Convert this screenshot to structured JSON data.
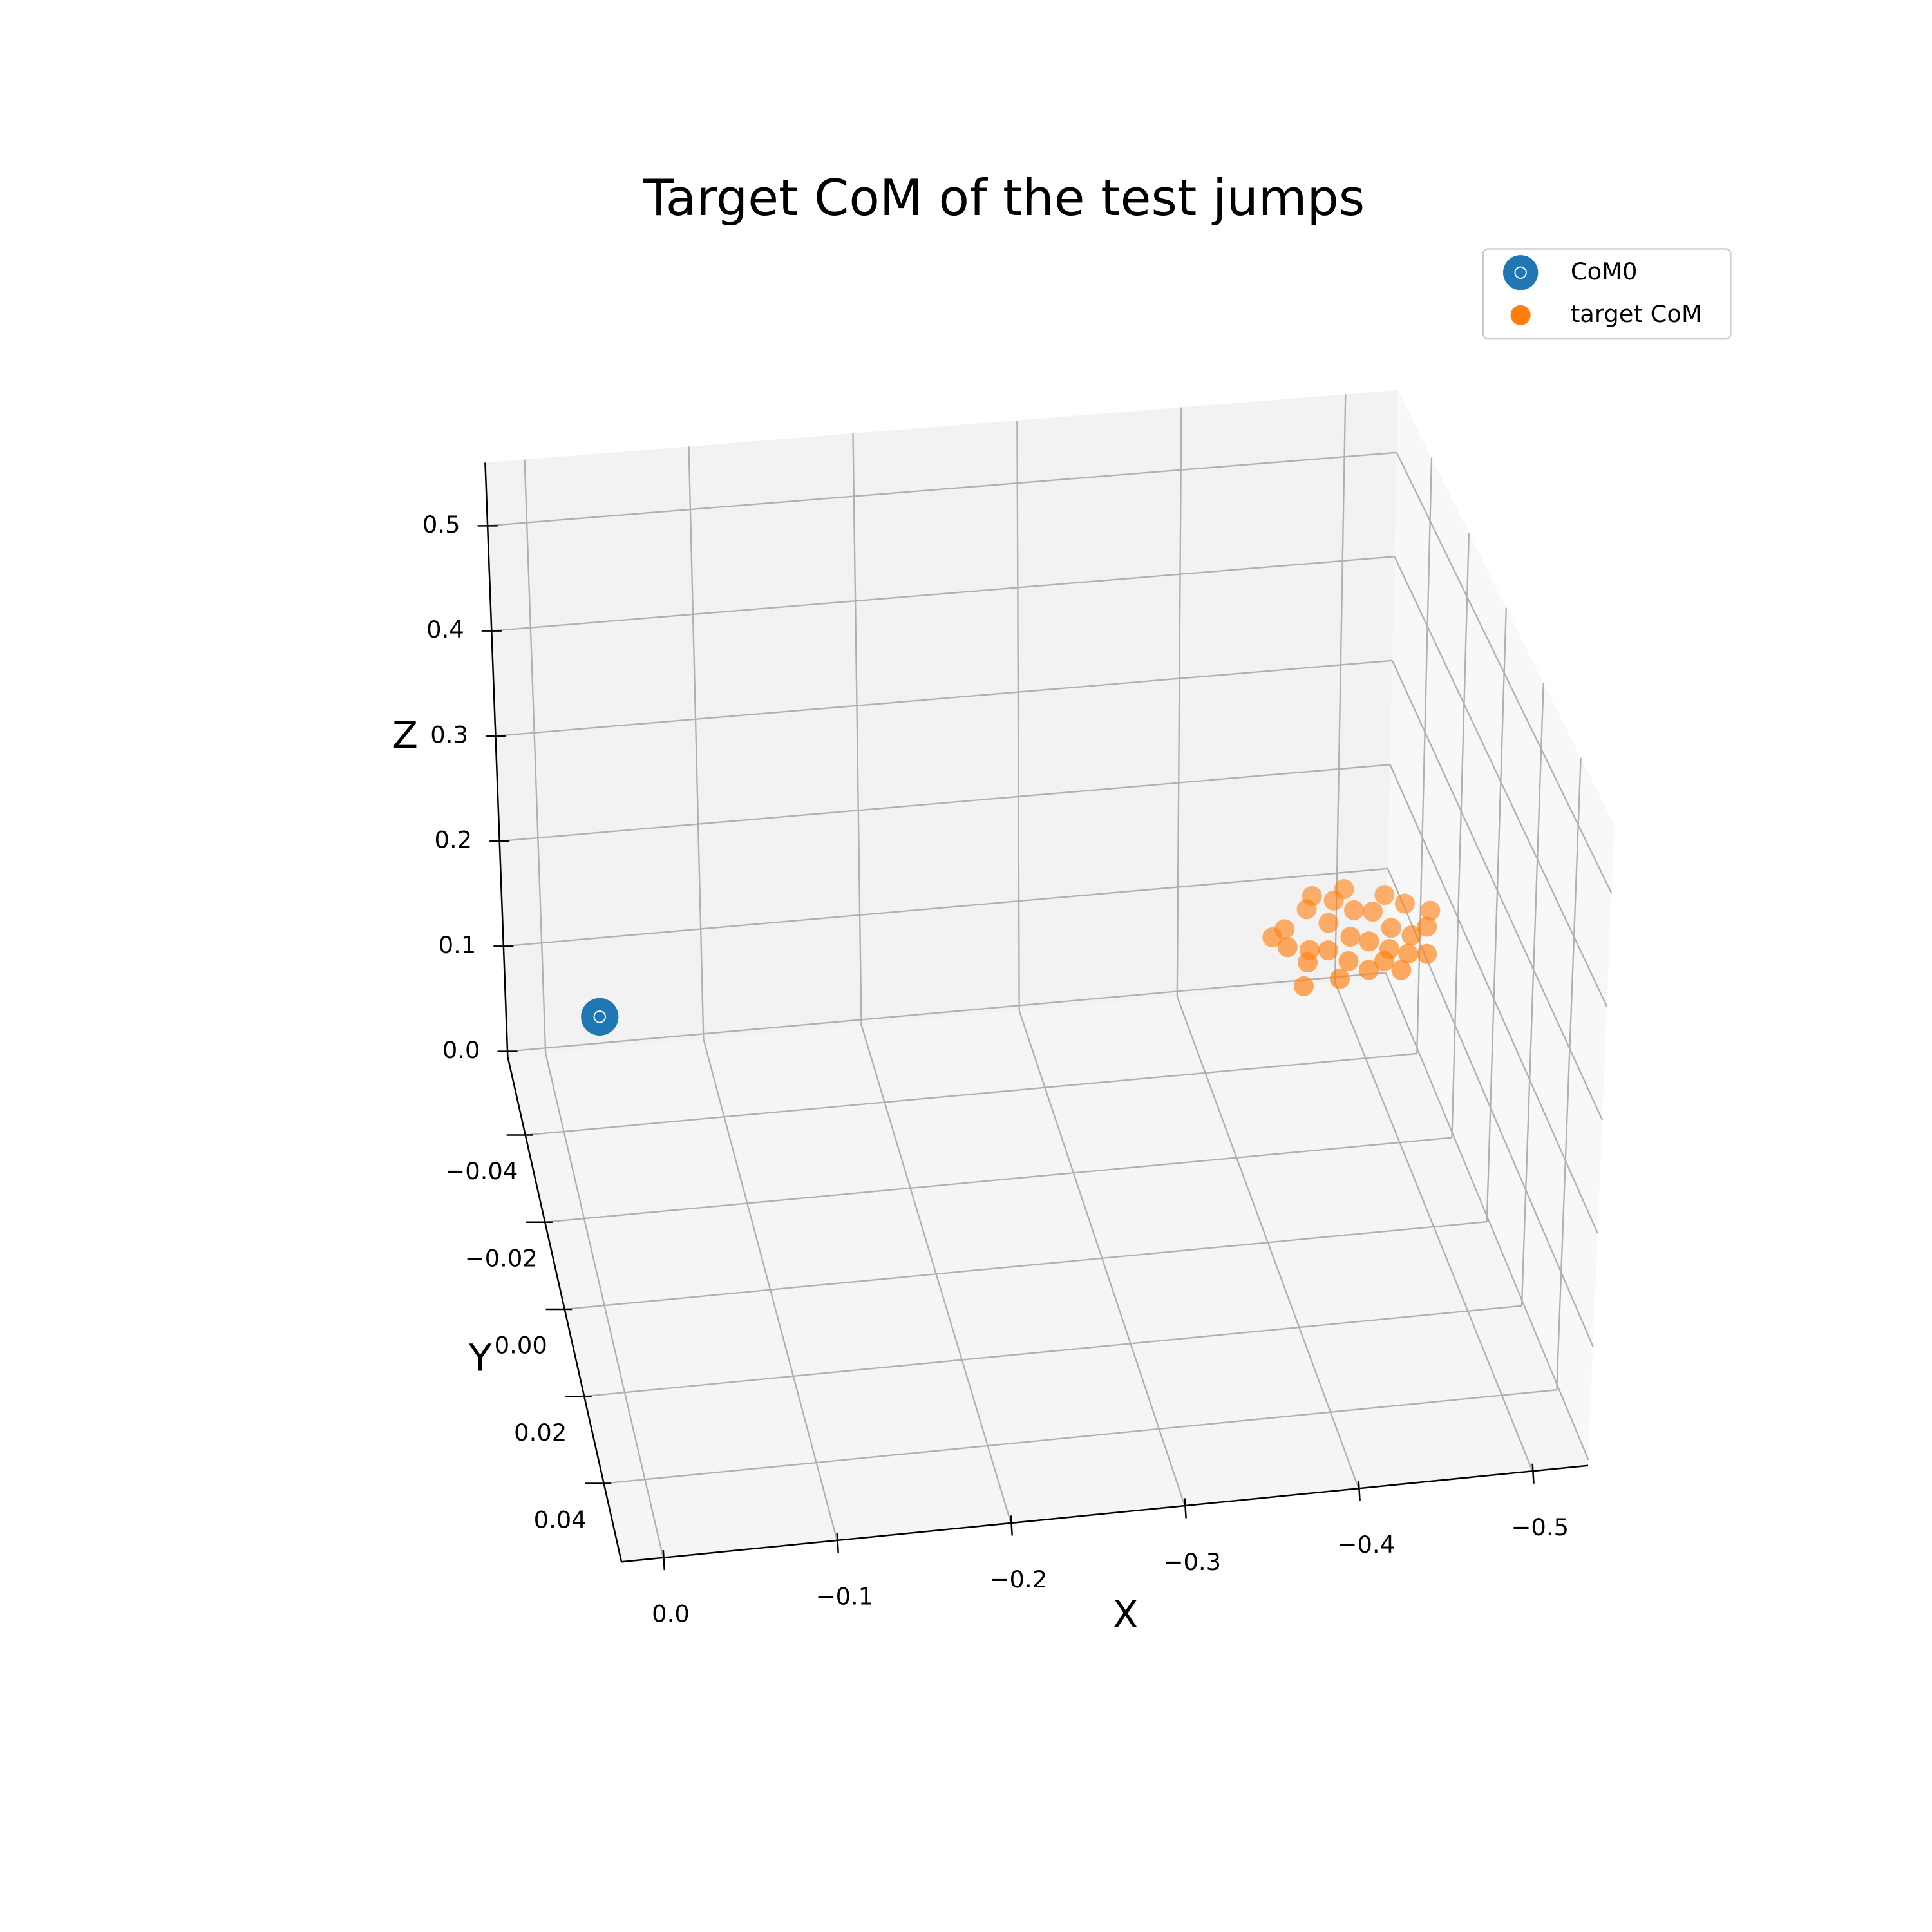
{
  "chart_data": {
    "type": "scatter3d",
    "title": "Target CoM of the test jumps",
    "xlabel": "X",
    "ylabel": "Y",
    "zlabel": "Z",
    "xlim": [
      0.024,
      -0.532
    ],
    "ylim": [
      -0.058,
      0.058
    ],
    "zlim": [
      -0.005,
      0.56
    ],
    "xticks": [
      {
        "value": 0.0,
        "label": "0.0"
      },
      {
        "value": -0.1,
        "label": "−0.1"
      },
      {
        "value": -0.2,
        "label": "−0.2"
      },
      {
        "value": -0.3,
        "label": "−0.3"
      },
      {
        "value": -0.4,
        "label": "−0.4"
      },
      {
        "value": -0.5,
        "label": "−0.5"
      }
    ],
    "yticks": [
      {
        "value": -0.04,
        "label": "−0.04"
      },
      {
        "value": -0.02,
        "label": "−0.02"
      },
      {
        "value": 0.0,
        "label": "0.00"
      },
      {
        "value": 0.02,
        "label": "0.02"
      },
      {
        "value": 0.04,
        "label": "0.04"
      }
    ],
    "zticks": [
      {
        "value": 0.0,
        "label": "0.0"
      },
      0.1,
      0.2,
      0.3,
      0.4,
      0.5
    ],
    "grid": true,
    "legend": "upper right",
    "series": [
      {
        "name": "CoM0",
        "color": "#1f77b4",
        "x": [
          0.0
        ],
        "y": [
          0.006
        ],
        "z": [
          0.28
        ]
      },
      {
        "name": "target CoM",
        "color": "#ff7f0e",
        "x": [
          -0.4,
          -0.405,
          -0.41,
          -0.415,
          -0.42,
          -0.425,
          -0.43,
          -0.432,
          -0.435,
          -0.44,
          -0.442,
          -0.445,
          -0.45,
          -0.452,
          -0.455,
          -0.46,
          -0.462,
          -0.465,
          -0.47,
          -0.472,
          -0.475,
          -0.48,
          -0.482,
          -0.485,
          -0.49,
          -0.495,
          -0.41,
          -0.43,
          -0.45,
          -0.468
        ],
        "y": [
          0.0,
          0.004,
          -0.003,
          0.006,
          0.002,
          -0.005,
          0.003,
          0.008,
          -0.002,
          0.005,
          -0.006,
          0.001,
          0.007,
          -0.004,
          0.002,
          0.006,
          -0.003,
          0.004,
          0.0,
          -0.006,
          0.005,
          0.002,
          -0.004,
          0.006,
          0.001,
          -0.002,
          0.009,
          -0.007,
          -0.008,
          0.008
        ],
        "z": [
          0.275,
          0.28,
          0.27,
          0.272,
          0.268,
          0.279,
          0.27,
          0.262,
          0.276,
          0.266,
          0.281,
          0.273,
          0.264,
          0.278,
          0.271,
          0.267,
          0.279,
          0.27,
          0.274,
          0.282,
          0.268,
          0.273,
          0.28,
          0.27,
          0.276,
          0.279,
          0.262,
          0.283,
          0.283,
          0.265
        ]
      }
    ]
  }
}
